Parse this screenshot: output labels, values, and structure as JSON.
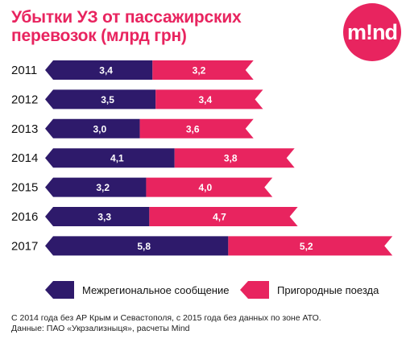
{
  "header": {
    "title_line1": "Убытки УЗ от пассажирских",
    "title_line2": "перевозок (млрд грн)"
  },
  "logo": {
    "text": "m!nd",
    "color": "#e8245f"
  },
  "chart_data": {
    "type": "bar",
    "orientation": "horizontal",
    "stacked": true,
    "title": "Убытки УЗ от пассажирских перевозок (млрд грн)",
    "categories": [
      "2011",
      "2012",
      "2013",
      "2014",
      "2015",
      "2016",
      "2017"
    ],
    "series": [
      {
        "name": "Межрегиональное сообщение",
        "color": "#2e1a6b",
        "values": [
          3.4,
          3.5,
          3.0,
          4.1,
          3.2,
          3.3,
          5.8
        ],
        "labels": [
          "3,4",
          "3,5",
          "3,0",
          "4,1",
          "3,2",
          "3,3",
          "5,8"
        ]
      },
      {
        "name": "Пригородные поезда",
        "color": "#e8245f",
        "values": [
          3.2,
          3.4,
          3.6,
          3.8,
          4.0,
          4.7,
          5.2
        ],
        "labels": [
          "3,2",
          "3,4",
          "3,6",
          "3,8",
          "4,0",
          "4,7",
          "5,2"
        ]
      }
    ],
    "legend_position": "bottom",
    "grid": false
  },
  "legend": {
    "items": [
      {
        "label": "Межрегиональное сообщение",
        "color": "#2e1a6b"
      },
      {
        "label": "Пригородные поезда",
        "color": "#e8245f"
      }
    ]
  },
  "footnote": {
    "line1": "С 2014 года без АР Крым и Севастополя, с 2015 года без данных по зоне АТО.",
    "line2": "Данные: ПАО «Укрзализныця», расчеты Mind"
  }
}
